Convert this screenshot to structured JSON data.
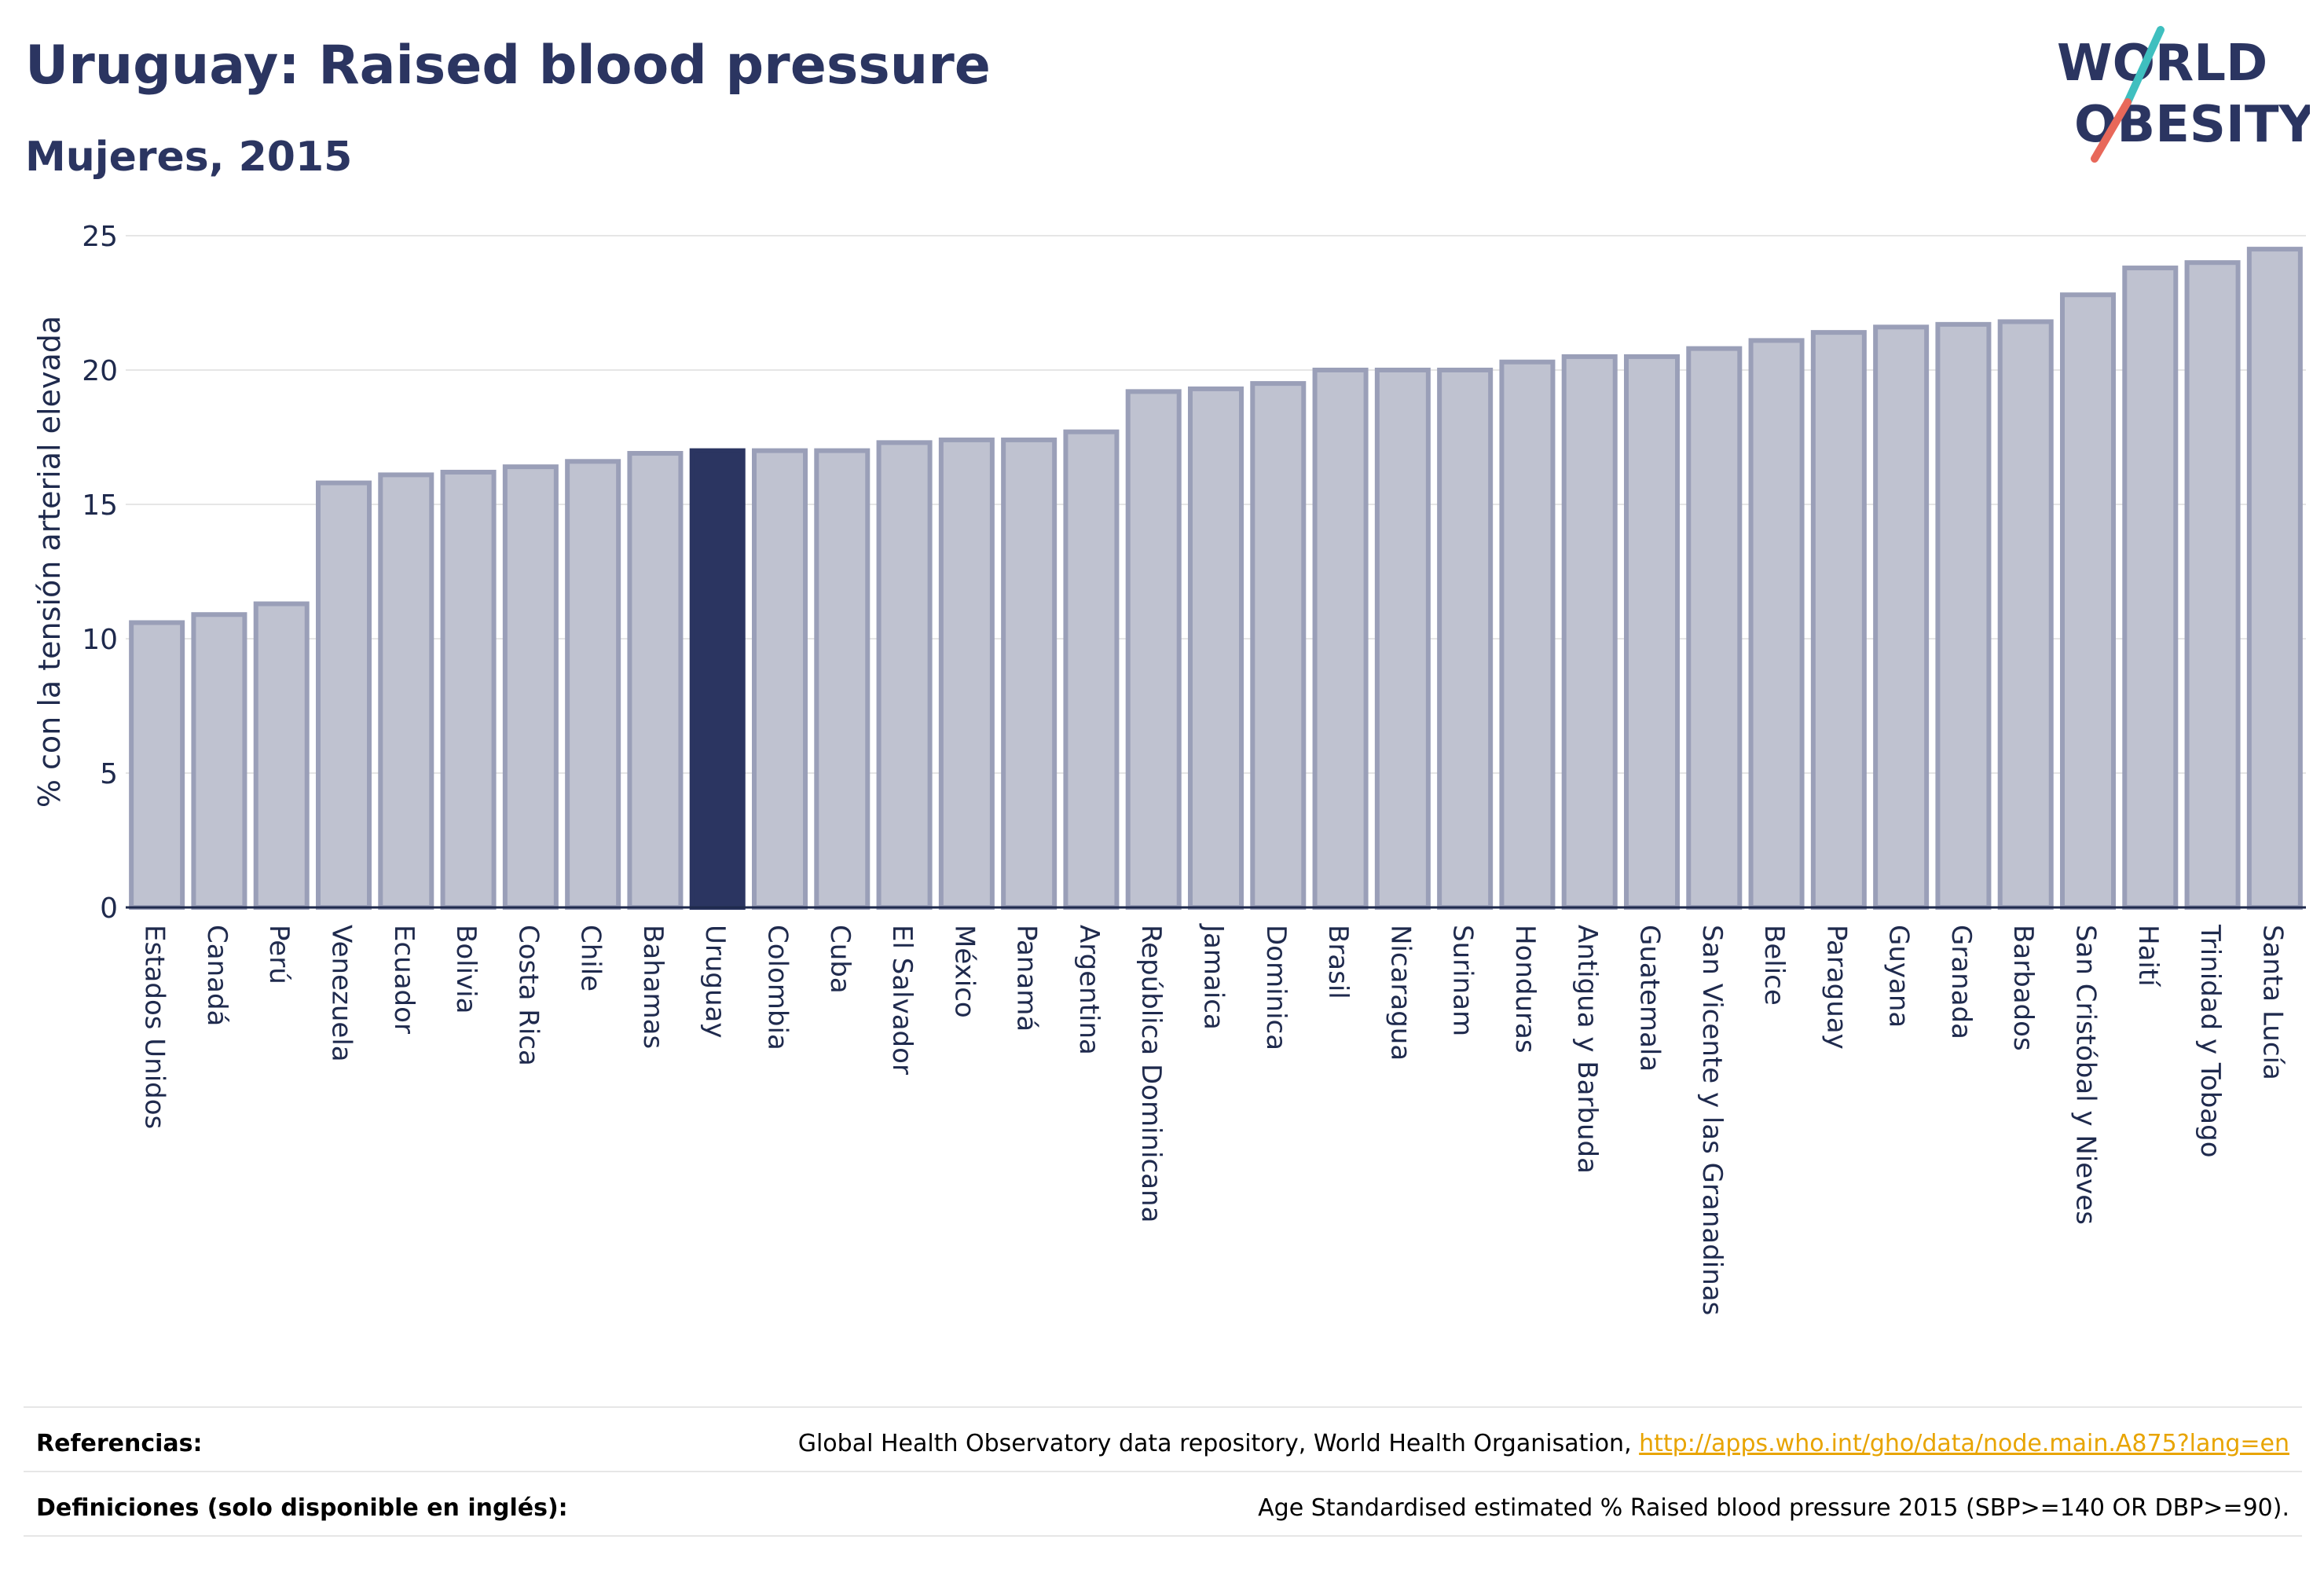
{
  "header": {
    "title": "Uruguay: Raised blood pressure",
    "subtitle": "Mujeres, 2015"
  },
  "logo": {
    "line1": "WORLD",
    "line2": "OBESITY",
    "colors": {
      "text": "#2b3561",
      "slash_teal": "#3fbfbf",
      "slash_red": "#e8685a"
    }
  },
  "chart_data": {
    "type": "bar",
    "title": "Uruguay: Raised blood pressure",
    "subtitle": "Mujeres, 2015",
    "xlabel": "",
    "ylabel": "% con la tensión arterial elevada",
    "ylim": [
      0,
      25
    ],
    "yticks": [
      0,
      5,
      10,
      15,
      20,
      25
    ],
    "grid": true,
    "highlight": "Uruguay",
    "colors": {
      "bar": "#bfc2d0",
      "bar_edge": "#9a9fb8",
      "highlight": "#2b3561"
    },
    "categories": [
      "Estados Unidos",
      "Canadá",
      "Perú",
      "Venezuela",
      "Ecuador",
      "Bolivia",
      "Costa Rica",
      "Chile",
      "Bahamas",
      "Uruguay",
      "Colombia",
      "Cuba",
      "El Salvador",
      "México",
      "Panamá",
      "Argentina",
      "República Dominicana",
      "Jamaica",
      "Dominica",
      "Brasil",
      "Nicaragua",
      "Surinam",
      "Honduras",
      "Antigua y Barbuda",
      "Guatemala",
      "San Vicente y las Granadinas",
      "Belice",
      "Paraguay",
      "Guyana",
      "Granada",
      "Barbados",
      "San Cristóbal y Nieves",
      "Haití",
      "Trinidad y Tobago",
      "Santa Lucía"
    ],
    "values": [
      10.6,
      10.9,
      11.3,
      15.8,
      16.1,
      16.2,
      16.4,
      16.6,
      16.9,
      17.0,
      17.0,
      17.0,
      17.3,
      17.4,
      17.4,
      17.7,
      19.2,
      19.3,
      19.5,
      20.0,
      20.0,
      20.0,
      20.3,
      20.5,
      20.5,
      20.8,
      21.1,
      21.4,
      21.6,
      21.7,
      21.8,
      22.8,
      23.8,
      24.0,
      24.5
    ]
  },
  "footer": {
    "references_label": "Referencias:",
    "references_text": "Global Health Observatory data repository, World Health Organisation, ",
    "references_link": "http://apps.who.int/gho/data/node.main.A875?lang=en",
    "definitions_label": "Definiciones (solo disponible en inglés):",
    "definitions_text": "Age Standardised estimated % Raised blood pressure 2015 (SBP>=140 OR DBP>=90)."
  }
}
